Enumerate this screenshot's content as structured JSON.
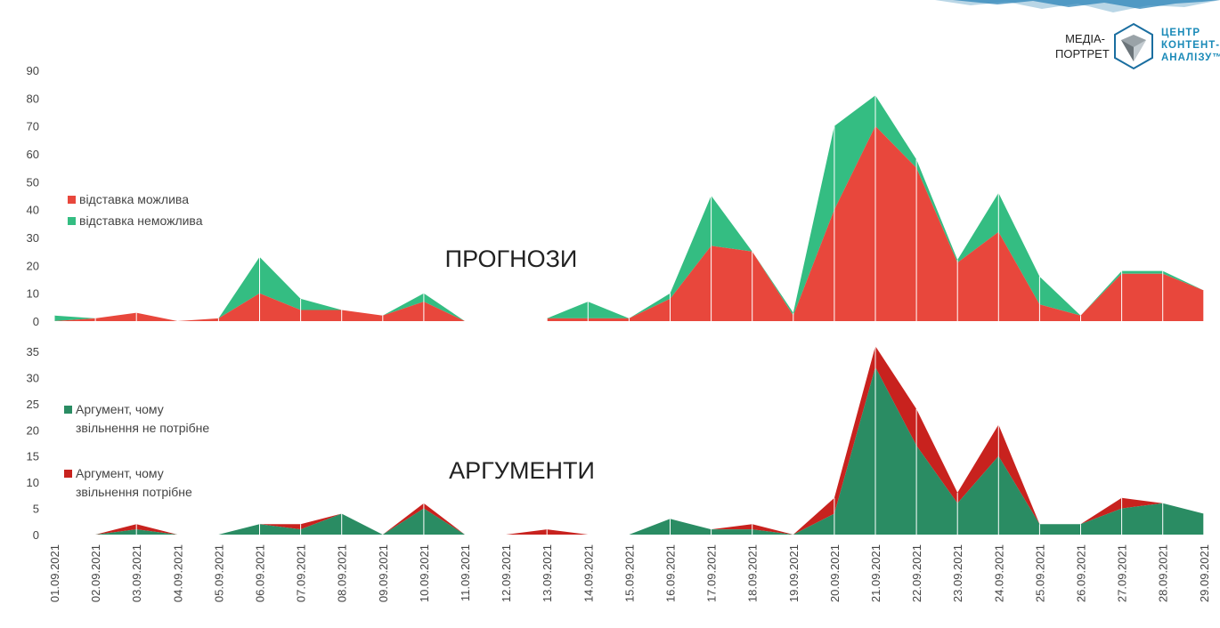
{
  "logo": {
    "label_line1": "МЕДІА-",
    "label_line2": "ПОРТРЕТ",
    "brand_line1": "ЦЕНТР",
    "brand_line2": "КОНТЕНТ-",
    "brand_line3": "АНАЛІЗУ™",
    "icon": "hexagon-shield-icon",
    "brand_color": "#1a8ab8"
  },
  "chart_data": [
    {
      "type": "area",
      "stacked": true,
      "title": "ПРОГНОЗИ",
      "x": [
        "01.09.2021",
        "02.09.2021",
        "03.09.2021",
        "04.09.2021",
        "05.09.2021",
        "06.09.2021",
        "07.09.2021",
        "08.09.2021",
        "09.09.2021",
        "10.09.2021",
        "11.09.2021",
        "12.09.2021",
        "13.09.2021",
        "14.09.2021",
        "15.09.2021",
        "16.09.2021",
        "17.09.2021",
        "18.09.2021",
        "19.09.2021",
        "20.09.2021",
        "21.09.2021",
        "22.09.2021",
        "23.09.2021",
        "24.09.2021",
        "25.09.2021",
        "26.09.2021",
        "27.09.2021",
        "28.09.2021",
        "29.09.2021"
      ],
      "ylim": [
        0,
        90
      ],
      "yticks": [
        "90",
        "80",
        "70",
        "60",
        "50",
        "40",
        "30",
        "20",
        "10",
        "0"
      ],
      "legend_placement": "left",
      "series": [
        {
          "name": "відставка можлива",
          "color": "#e8473c",
          "values": [
            0,
            1,
            3,
            0,
            1,
            10,
            4,
            4,
            2,
            7,
            0,
            null,
            1,
            1,
            1,
            8,
            27,
            25,
            2,
            40,
            70,
            55,
            21,
            32,
            6,
            2,
            17,
            17,
            11
          ]
        },
        {
          "name": "відставка неможлива",
          "color": "#34bd82",
          "values": [
            2,
            0,
            0,
            0,
            0,
            13,
            4,
            0,
            0,
            3,
            0,
            null,
            0,
            6,
            0,
            2,
            18,
            0,
            1,
            30,
            11,
            3,
            1,
            14,
            10,
            0,
            1,
            1,
            0
          ]
        }
      ]
    },
    {
      "type": "area",
      "stacked": true,
      "title": "АРГУМЕНТИ",
      "x": [
        "01.09.2021",
        "02.09.2021",
        "03.09.2021",
        "04.09.2021",
        "05.09.2021",
        "06.09.2021",
        "07.09.2021",
        "08.09.2021",
        "09.09.2021",
        "10.09.2021",
        "11.09.2021",
        "12.09.2021",
        "13.09.2021",
        "14.09.2021",
        "15.09.2021",
        "16.09.2021",
        "17.09.2021",
        "18.09.2021",
        "19.09.2021",
        "20.09.2021",
        "21.09.2021",
        "22.09.2021",
        "23.09.2021",
        "24.09.2021",
        "25.09.2021",
        "26.09.2021",
        "27.09.2021",
        "28.09.2021",
        "29.09.2021"
      ],
      "ylim": [
        0,
        35
      ],
      "yticks": [
        "35",
        "30",
        "25",
        "20",
        "15",
        "10",
        "5",
        "0"
      ],
      "legend_placement": "left",
      "series": [
        {
          "name": "Аргумент, чому звільнення не потрібне",
          "legend_lines": [
            "Аргумент, чому",
            "звільнення не потрібне"
          ],
          "color": "#2a8c63",
          "values": [
            null,
            0,
            1,
            0,
            0,
            2,
            1,
            4,
            0,
            5,
            0,
            0,
            0,
            0,
            0,
            3,
            1,
            1,
            0,
            4,
            32,
            17,
            6,
            15,
            2,
            2,
            5,
            6,
            4
          ]
        },
        {
          "name": "Аргумент, чому звільнення потрібне",
          "legend_lines": [
            "Аргумент, чому",
            "звільнення потрібне"
          ],
          "color": "#c8221e",
          "values": [
            null,
            0,
            1,
            0,
            0,
            0,
            1,
            0,
            0,
            1,
            0,
            0,
            1,
            0,
            0,
            0,
            0,
            1,
            0,
            3,
            4,
            7,
            2,
            6,
            0,
            0,
            2,
            0,
            0
          ]
        }
      ]
    }
  ]
}
